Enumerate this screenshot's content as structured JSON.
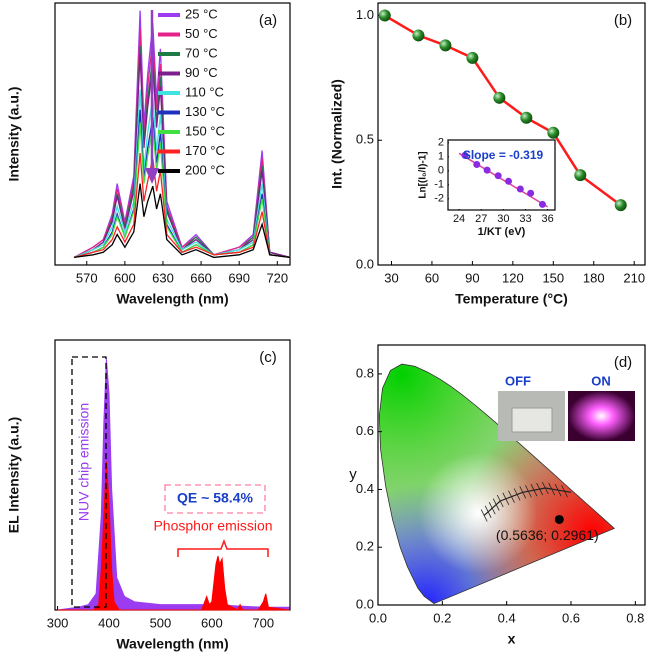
{
  "chart_data": [
    {
      "type": "line",
      "panel_label": "(a)",
      "xlabel": "Wavelength (nm)",
      "ylabel": "Intensity (a.u.)",
      "xlim": [
        545,
        730
      ],
      "xticks": [
        570,
        600,
        630,
        660,
        690,
        720
      ],
      "ylim": [
        0,
        1.03
      ],
      "x": [
        560,
        575,
        583,
        590,
        594,
        600,
        607,
        612,
        615,
        618,
        622,
        625,
        628,
        633,
        645,
        656,
        670,
        690,
        701,
        708,
        714,
        730
      ],
      "series": [
        {
          "name": "25 °C",
          "color": "#9b3cf0",
          "values": [
            0.03,
            0.07,
            0.1,
            0.2,
            0.32,
            0.17,
            0.35,
            1.0,
            0.55,
            0.75,
            0.95,
            0.65,
            0.85,
            0.25,
            0.07,
            0.12,
            0.04,
            0.07,
            0.12,
            0.45,
            0.05,
            0.03
          ]
        },
        {
          "name": "50 °C",
          "color": "#e6218c",
          "values": [
            0.03,
            0.07,
            0.1,
            0.19,
            0.3,
            0.16,
            0.33,
            0.93,
            0.51,
            0.7,
            0.89,
            0.61,
            0.79,
            0.23,
            0.07,
            0.11,
            0.04,
            0.07,
            0.11,
            0.42,
            0.05,
            0.03
          ]
        },
        {
          "name": "70 °C",
          "color": "#1f7a45",
          "values": [
            0.03,
            0.06,
            0.09,
            0.18,
            0.28,
            0.15,
            0.31,
            0.86,
            0.48,
            0.65,
            0.82,
            0.56,
            0.74,
            0.22,
            0.06,
            0.11,
            0.04,
            0.06,
            0.11,
            0.39,
            0.05,
            0.03
          ]
        },
        {
          "name": "90 °C",
          "color": "#7a1f8c",
          "values": [
            0.03,
            0.06,
            0.09,
            0.17,
            0.27,
            0.14,
            0.29,
            0.83,
            0.46,
            0.62,
            0.78,
            0.54,
            0.7,
            0.21,
            0.06,
            0.1,
            0.04,
            0.06,
            0.1,
            0.37,
            0.05,
            0.03
          ]
        },
        {
          "name": "110 °C",
          "color": "#3fe3e0",
          "values": [
            0.03,
            0.06,
            0.08,
            0.15,
            0.23,
            0.13,
            0.25,
            0.69,
            0.38,
            0.52,
            0.66,
            0.45,
            0.59,
            0.18,
            0.06,
            0.09,
            0.04,
            0.06,
            0.09,
            0.32,
            0.04,
            0.03
          ]
        },
        {
          "name": "130 °C",
          "color": "#1f2fbf",
          "values": [
            0.03,
            0.05,
            0.07,
            0.13,
            0.2,
            0.11,
            0.22,
            0.61,
            0.34,
            0.46,
            0.58,
            0.4,
            0.52,
            0.16,
            0.05,
            0.08,
            0.04,
            0.05,
            0.08,
            0.28,
            0.04,
            0.03
          ]
        },
        {
          "name": "150 °C",
          "color": "#3fe040",
          "values": [
            0.03,
            0.05,
            0.07,
            0.12,
            0.19,
            0.11,
            0.21,
            0.56,
            0.32,
            0.43,
            0.54,
            0.37,
            0.48,
            0.15,
            0.05,
            0.08,
            0.04,
            0.05,
            0.08,
            0.26,
            0.04,
            0.03
          ]
        },
        {
          "name": "170 °C",
          "color": "#ff2222",
          "values": [
            0.03,
            0.05,
            0.06,
            0.1,
            0.15,
            0.09,
            0.16,
            0.44,
            0.25,
            0.33,
            0.42,
            0.29,
            0.37,
            0.12,
            0.05,
            0.07,
            0.04,
            0.05,
            0.07,
            0.21,
            0.04,
            0.03
          ]
        },
        {
          "name": "200 °C",
          "color": "#000000",
          "values": [
            0.03,
            0.04,
            0.05,
            0.08,
            0.12,
            0.07,
            0.13,
            0.32,
            0.19,
            0.25,
            0.31,
            0.22,
            0.28,
            0.1,
            0.04,
            0.06,
            0.03,
            0.04,
            0.06,
            0.16,
            0.04,
            0.03
          ]
        }
      ]
    },
    {
      "type": "line",
      "panel_label": "(b)",
      "xlabel": "Temperature (°C)",
      "ylabel": "Int. (Normalized)",
      "xlim": [
        20,
        218
      ],
      "xticks": [
        30,
        60,
        90,
        120,
        150,
        180,
        210
      ],
      "ylim": [
        0,
        1.05
      ],
      "yticks": [
        {
          "value": 0,
          "label": "0.0"
        },
        0.5,
        {
          "value": 1,
          "label": "1.0"
        }
      ],
      "x": [
        25,
        50,
        70,
        90,
        110,
        130,
        150,
        170,
        200
      ],
      "values": [
        1.0,
        0.92,
        0.88,
        0.83,
        0.67,
        0.59,
        0.53,
        0.36,
        0.24
      ],
      "color": "#ff1a1a",
      "marker_color": "#2a8a2a"
    },
    {
      "type": "scatter",
      "xlabel": "1/KT (eV)",
      "ylabel": "Ln[(I₀/I)-1]",
      "annotation": "Slope = -0.319",
      "xlim": [
        22.5,
        37
      ],
      "xticks": [
        24,
        27,
        30,
        33,
        36
      ],
      "ylim": [
        -2.8,
        2.2
      ],
      "yticks": [
        -2,
        -1,
        0,
        1,
        2
      ],
      "x": [
        24.8,
        26.4,
        27.8,
        29.3,
        30.7,
        32.3,
        33.7,
        35.3
      ],
      "values": [
        1.1,
        0.45,
        0.05,
        -0.35,
        -0.75,
        -1.3,
        -1.6,
        -2.4
      ],
      "color": "#8a2be2",
      "fit": {
        "x": [
          24,
          36
        ],
        "values": [
          1.25,
          -2.58
        ],
        "color": "#e040a0"
      }
    },
    {
      "type": "area",
      "panel_label": "(c)",
      "xlabel": "Wavelength (nm)",
      "ylabel": "EL Intensity (a.u.)",
      "xlim": [
        295,
        752
      ],
      "xticks": [
        300,
        400,
        500,
        600,
        700
      ],
      "ylim": [
        0,
        1
      ],
      "annotations": [
        "NUV chip emission",
        "QE ~ 58.4%",
        "Phosphor emission"
      ],
      "series": [
        {
          "color": "#9b3cf0",
          "x": [
            300,
            340,
            360,
            375,
            385,
            390,
            395,
            400,
            405,
            415,
            430,
            450,
            500,
            600,
            700,
            750
          ],
          "values": [
            0.0,
            0.01,
            0.02,
            0.06,
            0.35,
            0.7,
            0.93,
            0.8,
            0.45,
            0.12,
            0.05,
            0.03,
            0.02,
            0.02,
            0.01,
            0.01
          ]
        },
        {
          "color": "#ff0000",
          "x": [
            300,
            370,
            380,
            385,
            390,
            395,
            400,
            405,
            410,
            420,
            560,
            580,
            590,
            595,
            600,
            608,
            612,
            615,
            620,
            625,
            630,
            650,
            655,
            660,
            690,
            700,
            705,
            710,
            750
          ],
          "values": [
            0,
            0,
            0.02,
            0.15,
            0.35,
            0.55,
            0.4,
            0.15,
            0.03,
            0,
            0,
            0,
            0.05,
            0.02,
            0.03,
            0.17,
            0.2,
            0.17,
            0.19,
            0.08,
            0.02,
            0,
            0.02,
            0,
            0,
            0.03,
            0.06,
            0.01,
            0
          ]
        }
      ]
    },
    {
      "type": "scatter",
      "panel_label": "(d)",
      "xlabel": "x",
      "ylabel": "y",
      "xlim": [
        0,
        0.83
      ],
      "xticks": [
        {
          "value": 0,
          "label": "0.0"
        },
        0.2,
        0.4,
        0.6,
        0.8
      ],
      "ylim": [
        0,
        0.9
      ],
      "yticks": [
        {
          "value": 0,
          "label": "0.0"
        },
        0.2,
        0.4,
        0.6,
        0.8
      ],
      "annotations": [
        "OFF",
        "ON"
      ],
      "x": [
        0.5636
      ],
      "values": [
        0.2961
      ],
      "value_labels": [
        "(0.5636; 0.2961)"
      ],
      "color": "#000000"
    }
  ]
}
